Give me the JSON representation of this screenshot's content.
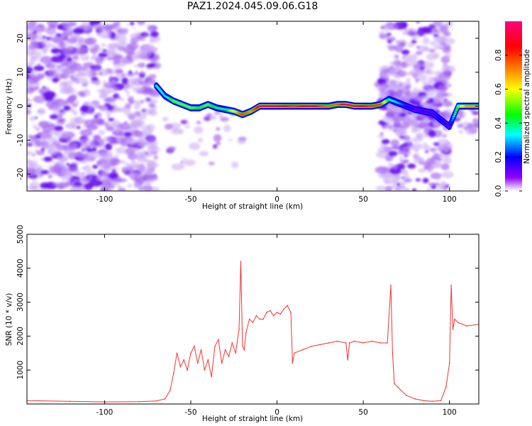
{
  "title": "PAZ1.2024.045.09.06.G18",
  "chart_data": [
    {
      "type": "heatmap",
      "xlabel": "Height of straight line (km)",
      "ylabel": "Frequency (Hz)",
      "xlim": [
        -145,
        117
      ],
      "ylim": [
        -25,
        25
      ],
      "xticks": [
        -100,
        -50,
        0,
        50,
        100
      ],
      "yticks": [
        20,
        10,
        0,
        -10,
        -20
      ],
      "colorbar": {
        "label": "Normalized spectral amplitude",
        "range": [
          0,
          1
        ],
        "ticks": [
          0.0,
          0.2,
          0.4,
          0.6,
          0.8
        ],
        "colormap": [
          "#ffffff",
          "#8f00ff",
          "#0000ff",
          "#00ffff",
          "#00ff00",
          "#ffff00",
          "#ff7f00",
          "#ff0000",
          "#ff0080"
        ]
      },
      "ridge": {
        "x": [
          -70,
          -65,
          -60,
          -55,
          -50,
          -45,
          -40,
          -35,
          -30,
          -25,
          -20,
          -15,
          -10,
          -5,
          0,
          5,
          10,
          15,
          20,
          25,
          30,
          35,
          40,
          45,
          50,
          55,
          60,
          65,
          70,
          75,
          80,
          90,
          95,
          100,
          105,
          110,
          117
        ],
        "freq": [
          6,
          3,
          1.5,
          0.5,
          -0.5,
          -0.5,
          0.5,
          -0.5,
          -1,
          -1.5,
          -2.5,
          -1.5,
          0,
          0,
          0,
          0,
          0,
          0,
          0,
          0,
          0,
          0.5,
          0.5,
          0,
          0,
          0,
          0.5,
          2,
          1,
          0,
          -1,
          -2,
          -4,
          -6,
          0,
          0,
          0
        ],
        "amplitude": [
          0.4,
          0.3,
          0.5,
          0.5,
          0.5,
          0.45,
          0.5,
          0.4,
          0.4,
          0.6,
          0.8,
          0.7,
          0.9,
          0.9,
          0.9,
          0.85,
          0.8,
          0.85,
          0.9,
          0.8,
          0.75,
          0.75,
          0.9,
          0.9,
          0.85,
          0.8,
          0.8,
          0.4,
          0.3,
          0.2,
          0.15,
          0.15,
          0.2,
          0.15,
          0.5,
          0.7,
          0.7
        ]
      }
    },
    {
      "type": "line",
      "xlabel": "Height of straight line (km)",
      "ylabel": "SNR (10 * v/v)",
      "xlim": [
        -145,
        117
      ],
      "ylim": [
        0,
        5000
      ],
      "xticks": [
        -100,
        -50,
        0,
        50,
        100
      ],
      "yticks": [
        1000,
        2000,
        3000,
        4000,
        5000
      ],
      "series": [
        {
          "color": "#ee3333",
          "x": [
            -145,
            -120,
            -100,
            -80,
            -70,
            -65,
            -62,
            -60,
            -58,
            -56,
            -54,
            -52,
            -50,
            -48,
            -46,
            -44,
            -42,
            -40,
            -38,
            -36,
            -34,
            -32,
            -30,
            -28,
            -26,
            -24,
            -22,
            -21,
            -20,
            -19,
            -18,
            -16,
            -14,
            -12,
            -10,
            -8,
            -6,
            -4,
            -2,
            0,
            2,
            4,
            6,
            8,
            9,
            10,
            15,
            20,
            25,
            30,
            35,
            40,
            41,
            42,
            45,
            50,
            55,
            60,
            64,
            66,
            67,
            68,
            70,
            75,
            80,
            85,
            90,
            95,
            98,
            100,
            101,
            102,
            103,
            105,
            110,
            117
          ],
          "values": [
            100,
            80,
            60,
            70,
            90,
            150,
            400,
            900,
            1500,
            1100,
            1300,
            1000,
            1500,
            1700,
            1200,
            1600,
            1000,
            1300,
            800,
            1700,
            1900,
            1200,
            1600,
            1400,
            1800,
            1500,
            2200,
            4200,
            1700,
            1600,
            2100,
            2500,
            2400,
            2600,
            2500,
            2500,
            2700,
            2750,
            2600,
            2700,
            2650,
            2800,
            2900,
            2700,
            1200,
            1500,
            1600,
            1700,
            1750,
            1800,
            1850,
            1800,
            1300,
            1800,
            1850,
            1800,
            1850,
            1800,
            1800,
            3500,
            1500,
            600,
            500,
            250,
            150,
            100,
            80,
            100,
            500,
            1200,
            3500,
            2200,
            2500,
            2400,
            2300,
            2350
          ]
        }
      ]
    }
  ]
}
